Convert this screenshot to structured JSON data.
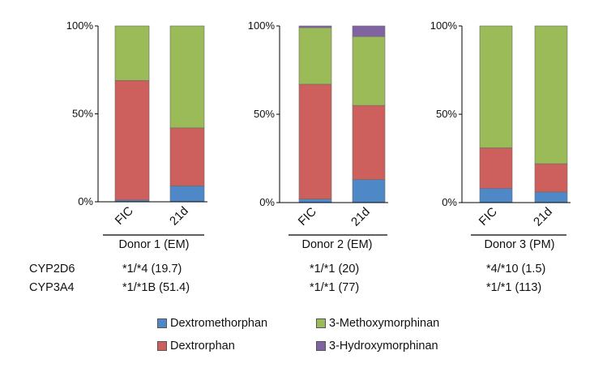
{
  "chart_data": [
    {
      "type": "bar",
      "stacked": true,
      "donor": "Donor 1 (EM)",
      "categories": [
        "FIC",
        "21d"
      ],
      "yticks": [
        "0%",
        "50%",
        "100%"
      ],
      "ylim": [
        0,
        100
      ],
      "series": [
        {
          "name": "Dextromethorphan",
          "values": [
            1,
            9
          ]
        },
        {
          "name": "Dextrorphan",
          "values": [
            68,
            33
          ]
        },
        {
          "name": "3-Methoxymorphinan",
          "values": [
            31,
            58
          ]
        },
        {
          "name": "3-Hydroxymorphinan",
          "values": [
            0,
            0
          ]
        }
      ]
    },
    {
      "type": "bar",
      "stacked": true,
      "donor": "Donor 2 (EM)",
      "categories": [
        "FIC",
        "21d"
      ],
      "yticks": [
        "0%",
        "50%",
        "100%"
      ],
      "ylim": [
        0,
        100
      ],
      "series": [
        {
          "name": "Dextromethorphan",
          "values": [
            2,
            13
          ]
        },
        {
          "name": "Dextrorphan",
          "values": [
            65,
            42
          ]
        },
        {
          "name": "3-Methoxymorphinan",
          "values": [
            32,
            39
          ]
        },
        {
          "name": "3-Hydroxymorphinan",
          "values": [
            1,
            6
          ]
        }
      ]
    },
    {
      "type": "bar",
      "stacked": true,
      "donor": "Donor 3 (PM)",
      "categories": [
        "FIC",
        "21d"
      ],
      "yticks": [
        "0%",
        "50%",
        "100%"
      ],
      "ylim": [
        0,
        100
      ],
      "series": [
        {
          "name": "Dextromethorphan",
          "values": [
            8,
            6
          ]
        },
        {
          "name": "Dextrorphan",
          "values": [
            23,
            16
          ]
        },
        {
          "name": "3-Methoxymorphinan",
          "values": [
            69,
            78
          ]
        },
        {
          "name": "3-Hydroxymorphinan",
          "values": [
            0,
            0
          ]
        }
      ]
    }
  ],
  "genotypes": {
    "cyp2d6_label": "CYP2D6",
    "cyp3a4_label": "CYP3A4",
    "cyp2d6": [
      "*1/*4 (19.7)",
      "*1/*1 (20)",
      "*4/*10 (1.5)"
    ],
    "cyp3a4": [
      "*1/*1B (51.4)",
      "*1/*1 (77)",
      "*1/*1 (113)"
    ]
  },
  "legend": [
    {
      "label": "Dextromethorphan",
      "color": "#4f88c6"
    },
    {
      "label": "3-Methoxymorphinan",
      "color": "#9bbb59"
    },
    {
      "label": "Dextrorphan",
      "color": "#cd5f5c"
    },
    {
      "label": "3-Hydroxymorphinan",
      "color": "#8064a2"
    }
  ]
}
